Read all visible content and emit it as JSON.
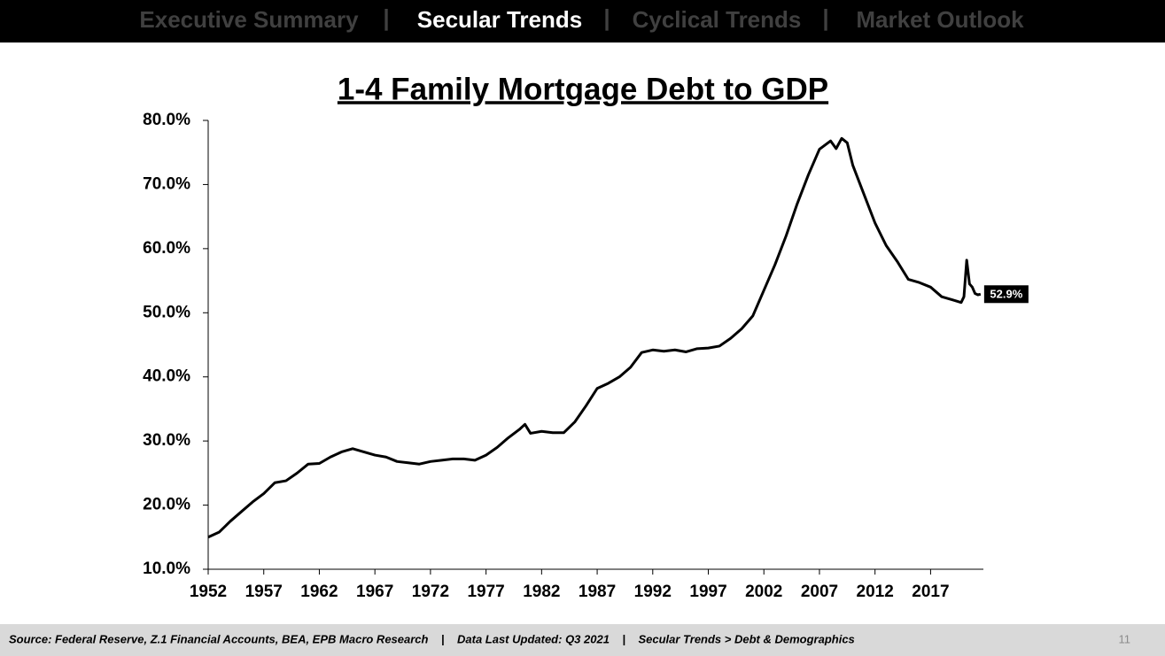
{
  "header": {
    "nav": [
      "Executive Summary",
      "Secular Trends",
      "Cyclical Trends",
      "Market Outlook"
    ],
    "nav_separator": "|",
    "active": 1
  },
  "chart_data": {
    "type": "line",
    "title": "1-4 Family Mortgage Debt to GDP",
    "color": "#000000",
    "x": [
      1952,
      1953,
      1954,
      1955,
      1956,
      1957,
      1958,
      1959,
      1960,
      1961,
      1962,
      1963,
      1964,
      1965,
      1966,
      1967,
      1968,
      1969,
      1970,
      1971,
      1972,
      1973,
      1974,
      1975,
      1976,
      1977,
      1978,
      1979,
      1980,
      1980.5,
      1981,
      1982,
      1983,
      1984,
      1985,
      1986,
      1987,
      1988,
      1989,
      1990,
      1991,
      1992,
      1993,
      1994,
      1995,
      1996,
      1997,
      1998,
      1999,
      2000,
      2001,
      2002,
      2003,
      2004,
      2005,
      2006,
      2007,
      2008,
      2008.5,
      2009,
      2009.5,
      2010,
      2011,
      2012,
      2013,
      2014,
      2015,
      2016,
      2017,
      2018,
      2019,
      2019.75,
      2020,
      2020.25,
      2020.5,
      2020.75,
      2021,
      2021.25,
      2021.5
    ],
    "values": [
      15.0,
      15.8,
      17.5,
      19.0,
      20.5,
      21.8,
      23.5,
      23.8,
      25.0,
      26.4,
      26.5,
      27.5,
      28.3,
      28.8,
      28.3,
      27.8,
      27.5,
      26.8,
      26.6,
      26.4,
      26.8,
      27.0,
      27.2,
      27.2,
      27.0,
      27.8,
      29.0,
      30.5,
      31.8,
      32.6,
      31.2,
      31.5,
      31.3,
      31.3,
      33.0,
      35.5,
      38.2,
      39.0,
      40.0,
      41.5,
      43.8,
      44.2,
      44.0,
      44.2,
      43.9,
      44.4,
      44.5,
      44.8,
      46.0,
      47.5,
      49.5,
      53.5,
      57.5,
      62.0,
      67.0,
      71.5,
      75.5,
      76.8,
      75.6,
      77.2,
      76.5,
      73.0,
      68.5,
      64.0,
      60.5,
      58.0,
      55.2,
      54.7,
      54.0,
      52.5,
      52.0,
      51.6,
      52.5,
      58.2,
      54.5,
      54.0,
      53.0,
      52.8,
      52.9
    ],
    "value_labels": [
      null,
      null,
      null,
      null,
      null,
      null,
      null,
      null,
      null,
      null,
      null,
      null,
      null,
      null,
      null,
      null,
      null,
      null,
      null,
      null,
      null,
      null,
      null,
      null,
      null,
      null,
      null,
      null,
      null,
      null,
      null,
      null,
      null,
      null,
      null,
      null,
      null,
      null,
      null,
      null,
      null,
      null,
      null,
      null,
      null,
      null,
      null,
      null,
      null,
      null,
      null,
      null,
      null,
      null,
      null,
      null,
      null,
      null,
      null,
      null,
      null,
      null,
      null,
      null,
      null,
      null,
      null,
      null,
      null,
      null,
      null,
      null,
      null,
      null,
      null,
      null,
      null,
      null,
      "52.9%"
    ],
    "xlim": [
      1952,
      2021.75
    ],
    "xticks": [
      1952,
      1957,
      1962,
      1967,
      1972,
      1977,
      1982,
      1987,
      1992,
      1997,
      2002,
      2007,
      2012,
      2017
    ],
    "ylim": [
      10,
      80
    ],
    "yticks": [
      {
        "value": 10,
        "label": "10.0%"
      },
      {
        "value": 20,
        "label": "20.0%"
      },
      {
        "value": 30,
        "label": "30.0%"
      },
      {
        "value": 40,
        "label": "40.0%"
      },
      {
        "value": 50,
        "label": "50.0%"
      },
      {
        "value": 60,
        "label": "60.0%"
      },
      {
        "value": 70,
        "label": "70.0%"
      },
      {
        "value": 80,
        "label": "80.0%"
      }
    ]
  },
  "footer": {
    "source": "Source: Federal Reserve, Z.1 Financial Accounts, BEA, EPB Macro Research    |    Data Last Updated: Q3 2021    |    Secular Trends > Debt & Demographics",
    "page": "11"
  }
}
